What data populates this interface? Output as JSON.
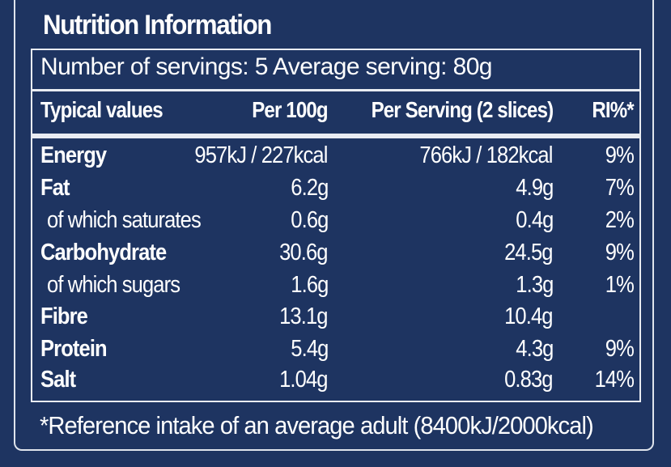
{
  "title": "Nutrition Information",
  "servings": "Number of servings: 5 Average serving: 80g",
  "headers": {
    "name": "Typical values",
    "per100": "Per 100g",
    "perServing": "Per Serving (2 slices)",
    "ri": "RI%*"
  },
  "rows": [
    {
      "name": "Energy",
      "per100": "957kJ / 227kcal",
      "perServing": "766kJ / 182kcal",
      "ri": "9%"
    },
    {
      "name": "Fat",
      "per100": "6.2g",
      "perServing": "4.9g",
      "ri": "7%"
    },
    {
      "name": "of which saturates",
      "per100": "0.6g",
      "perServing": "0.4g",
      "ri": "2%"
    },
    {
      "name": "Carbohydrate",
      "per100": "30.6g",
      "perServing": "24.5g",
      "ri": "9%"
    },
    {
      "name": "of which sugars",
      "per100": "1.6g",
      "perServing": "1.3g",
      "ri": "1%"
    },
    {
      "name": "Fibre",
      "per100": "13.1g",
      "perServing": "10.4g",
      "ri": ""
    },
    {
      "name": "Protein",
      "per100": "5.4g",
      "perServing": "4.3g",
      "ri": "9%"
    },
    {
      "name": "Salt",
      "per100": "1.04g",
      "perServing": "0.83g",
      "ri": "14%"
    }
  ],
  "footnote": "*Reference intake of an average adult (8400kJ/2000kcal)",
  "colors": {
    "background": "#1e3461",
    "text": "#ffffff",
    "rule": "#e9ecf2"
  }
}
